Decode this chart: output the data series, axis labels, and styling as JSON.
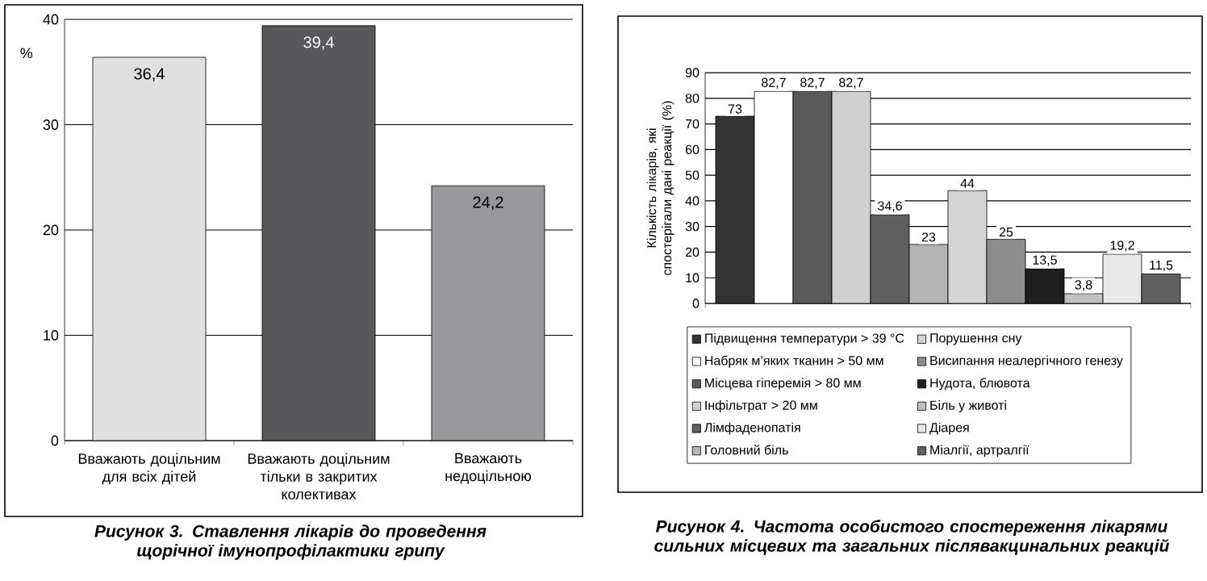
{
  "chart_data": [
    {
      "type": "bar",
      "title": "Рисунок 3. Ставлення лікарів до проведення щорічної імунопрофілактики грипу",
      "ylabel": "%",
      "categories": [
        "Вважають доцільним для всіх дітей",
        "Вважають доцільним тільки в закритих колективах",
        "Вважають недоцільною"
      ],
      "values": [
        36.4,
        39.4,
        24.2
      ],
      "value_labels": [
        "36,4",
        "39,4",
        "24,2"
      ],
      "colors": [
        "#e0e0e0",
        "#58585a",
        "#98989a"
      ],
      "ylim": [
        0,
        40
      ],
      "yticks": [
        0,
        10,
        20,
        30,
        40
      ],
      "grid": "y"
    },
    {
      "type": "bar",
      "title": "Рисунок 4. Частота особистого спостереження лікарями сильних місцевих та загальних післявакцинальних реакцій",
      "ylabel": "Кількість лікарів, які спостерігали дані реакції (%)",
      "categories": [
        null
      ],
      "series": [
        {
          "name": "Підвищення температури > 39 °C",
          "color": "#333333",
          "values": [
            73
          ],
          "value_labels": [
            "73"
          ]
        },
        {
          "name": "Набряк м’яких тканин > 50 мм",
          "color": "#ffffff",
          "values": [
            82.7
          ],
          "value_labels": [
            "82,7"
          ]
        },
        {
          "name": "Місцева гіперемія > 80 мм",
          "color": "#5a5a5a",
          "values": [
            82.7
          ],
          "value_labels": [
            "82,7"
          ]
        },
        {
          "name": "Інфільтрат > 20 мм",
          "color": "#d0d0d0",
          "values": [
            82.7
          ],
          "value_labels": [
            "82,7"
          ]
        },
        {
          "name": "Лімфаденопатія",
          "color": "#5f5f5f",
          "values": [
            34.6
          ],
          "value_labels": [
            "34,6"
          ]
        },
        {
          "name": "Головний біль",
          "color": "#b4b4b4",
          "values": [
            23
          ],
          "value_labels": [
            "23"
          ]
        },
        {
          "name": "Порушення сну",
          "color": "#d4d4d4",
          "values": [
            44
          ],
          "value_labels": [
            "44"
          ]
        },
        {
          "name": "Висипання неалергічного генезу",
          "color": "#8c8c8c",
          "values": [
            25
          ],
          "value_labels": [
            "25"
          ]
        },
        {
          "name": "Нудота, блювота",
          "color": "#1e1e1e",
          "values": [
            13.5
          ],
          "value_labels": [
            "13,5"
          ]
        },
        {
          "name": "Біль у животі",
          "color": "#c0c0c0",
          "values": [
            3.8
          ],
          "value_labels": [
            "3,8"
          ]
        },
        {
          "name": "Діарея",
          "color": "#e8e8e8",
          "values": [
            19.2
          ],
          "value_labels": [
            "19,2"
          ]
        },
        {
          "name": "Міалгії, артралгії",
          "color": "#606060",
          "values": [
            11.5
          ],
          "value_labels": [
            "11,5"
          ]
        }
      ],
      "ylim": [
        0,
        90
      ],
      "yticks": [
        0,
        10,
        20,
        30,
        40,
        50,
        60,
        70,
        80,
        90
      ],
      "grid": "y",
      "legend": "bottom",
      "tick_labels": "y"
    }
  ]
}
